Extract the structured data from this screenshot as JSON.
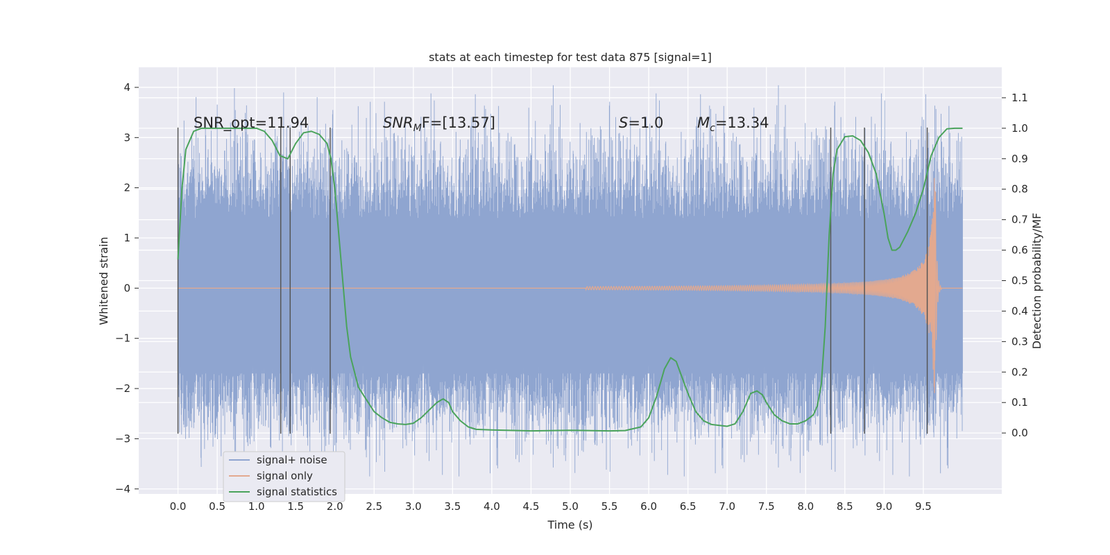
{
  "chart_data": {
    "type": "line",
    "title": "stats at each timestep for test data 875 [signal=1]",
    "xlabel": "Time (s)",
    "ylabel": "Whitened strain",
    "y2label": "Detection probability/MF",
    "xlim": [
      -0.5,
      10.5
    ],
    "ylim": [
      -4.1,
      4.4
    ],
    "y2lim": [
      -0.2,
      1.2
    ],
    "x_ticks": [
      "0.0",
      "0.5",
      "1.0",
      "1.5",
      "2.0",
      "2.5",
      "3.0",
      "3.5",
      "4.0",
      "4.5",
      "5.0",
      "5.5",
      "6.0",
      "6.5",
      "7.0",
      "7.5",
      "8.0",
      "8.5",
      "9.0",
      "9.5"
    ],
    "y_ticks": [
      "4",
      "3",
      "2",
      "1",
      "0",
      "−1",
      "−2",
      "−3",
      "−4"
    ],
    "y2_ticks": [
      "1.1",
      "1.0",
      "0.9",
      "0.8",
      "0.7",
      "0.6",
      "0.5",
      "0.4",
      "0.3",
      "0.2",
      "0.1",
      "0.0"
    ],
    "grid": true,
    "legend_position": "lower-left",
    "annotations": {
      "snr_opt": "SNR_opt=11.94",
      "snr_mf_base": "SNR",
      "snr_mf_sub": "M",
      "snr_mf_rest": "F=[13.57]",
      "s_base": "S",
      "s_rest": "=1.0",
      "mc_base": "M",
      "mc_sub": "c",
      "mc_rest": "=13.34"
    },
    "vlines_x": [
      0.0,
      1.31,
      1.43,
      1.94,
      8.32,
      8.75,
      9.55
    ],
    "series": [
      {
        "name": "signal+ noise",
        "color": "#8FA5D0",
        "x_range": [
          0.0,
          10.0
        ],
        "envelope": {
          "body": [
            -1.7,
            1.4
          ],
          "spikes_max": 4.05,
          "spikes_min": -3.75
        }
      },
      {
        "name": "signal only",
        "color": "#E3A98F",
        "chirp": {
          "start": 5.2,
          "merger": 9.65,
          "peak_amplitude": 2.6
        }
      },
      {
        "name": "signal statistics",
        "color": "#4AA35B",
        "axis": "right",
        "x": [
          0.0,
          0.05,
          0.1,
          0.2,
          0.3,
          0.5,
          0.8,
          1.0,
          1.1,
          1.2,
          1.3,
          1.4,
          1.5,
          1.6,
          1.7,
          1.8,
          1.9,
          1.95,
          2.0,
          2.05,
          2.1,
          2.15,
          2.2,
          2.3,
          2.4,
          2.5,
          2.6,
          2.7,
          2.8,
          2.9,
          3.0,
          3.1,
          3.2,
          3.3,
          3.38,
          3.45,
          3.5,
          3.6,
          3.7,
          3.8,
          4.0,
          4.5,
          5.0,
          5.5,
          5.7,
          5.9,
          6.0,
          6.1,
          6.2,
          6.28,
          6.35,
          6.4,
          6.5,
          6.6,
          6.7,
          6.8,
          7.0,
          7.1,
          7.2,
          7.3,
          7.38,
          7.45,
          7.5,
          7.6,
          7.7,
          7.8,
          7.9,
          8.0,
          8.1,
          8.15,
          8.2,
          8.25,
          8.3,
          8.35,
          8.4,
          8.5,
          8.6,
          8.7,
          8.8,
          8.9,
          9.0,
          9.05,
          9.1,
          9.15,
          9.2,
          9.3,
          9.4,
          9.5,
          9.6,
          9.7,
          9.8,
          9.9,
          10.0
        ],
        "y": [
          0.57,
          0.8,
          0.93,
          0.99,
          1.0,
          1.0,
          1.0,
          1.0,
          0.99,
          0.96,
          0.91,
          0.9,
          0.95,
          0.985,
          0.99,
          0.98,
          0.95,
          0.9,
          0.8,
          0.65,
          0.5,
          0.35,
          0.25,
          0.15,
          0.11,
          0.07,
          0.05,
          0.035,
          0.03,
          0.028,
          0.032,
          0.05,
          0.075,
          0.1,
          0.112,
          0.1,
          0.07,
          0.04,
          0.02,
          0.012,
          0.01,
          0.007,
          0.009,
          0.007,
          0.008,
          0.02,
          0.05,
          0.12,
          0.21,
          0.247,
          0.235,
          0.2,
          0.13,
          0.07,
          0.04,
          0.028,
          0.022,
          0.03,
          0.07,
          0.13,
          0.138,
          0.125,
          0.1,
          0.06,
          0.04,
          0.03,
          0.03,
          0.04,
          0.06,
          0.09,
          0.16,
          0.35,
          0.65,
          0.85,
          0.93,
          0.972,
          0.975,
          0.96,
          0.92,
          0.85,
          0.72,
          0.64,
          0.6,
          0.6,
          0.61,
          0.66,
          0.72,
          0.8,
          0.91,
          0.97,
          0.998,
          1.0,
          1.0
        ]
      }
    ]
  }
}
